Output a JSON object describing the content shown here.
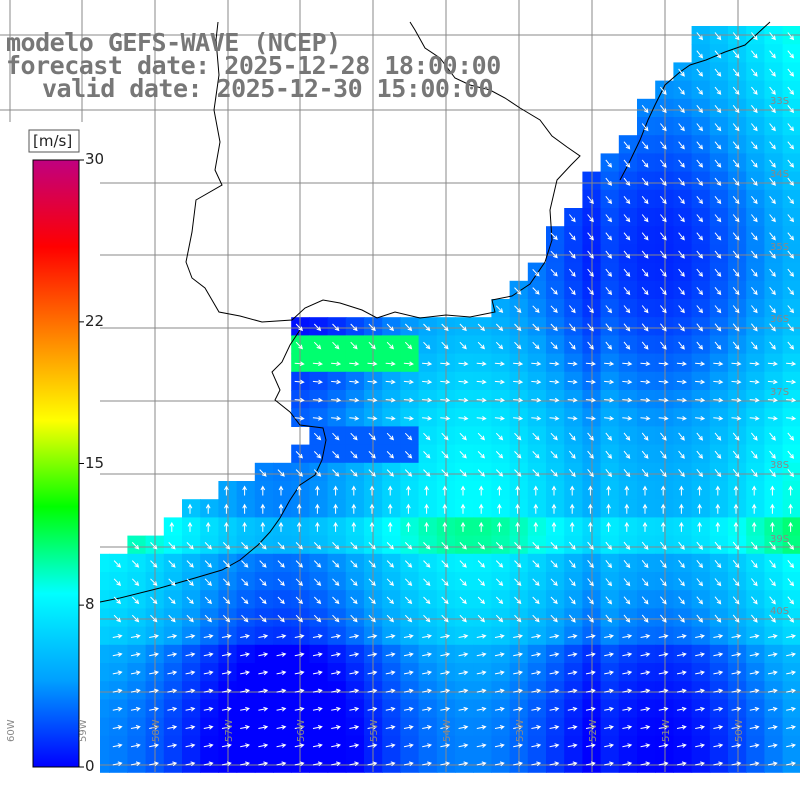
{
  "title": {
    "line1": "modelo GEFS-WAVE (NCEP)",
    "line2": "forecast date: 2025-12-28 18:00:00",
    "line3": "valid date: 2025-12-30 15:00:00"
  },
  "colorbar": {
    "unit": "[m/s]",
    "ticks": [
      {
        "value": 30,
        "label": "30"
      },
      {
        "value": 22,
        "label": "22"
      },
      {
        "value": 15,
        "label": "15"
      },
      {
        "value": 8,
        "label": "8"
      },
      {
        "value": 0,
        "label": "0"
      }
    ],
    "range": [
      0,
      30
    ],
    "colors": [
      "#0000ff",
      "#00a0ff",
      "#00ffff",
      "#00ff00",
      "#ffff00",
      "#ff8000",
      "#ff0000",
      "#c00080"
    ]
  },
  "lat_labels": [
    "33S",
    "34S",
    "35S",
    "36S",
    "37S",
    "38S",
    "39S",
    "40S"
  ],
  "lon_labels": [
    "60W",
    "59W",
    "58W",
    "57W",
    "56W",
    "55W",
    "54W",
    "53W",
    "52W",
    "51W",
    "50W"
  ],
  "colors": {
    "land": "#ffffff",
    "coastline": "#000000",
    "grid": "#888888",
    "arrow": "#ffffff",
    "text": "#777777"
  }
}
